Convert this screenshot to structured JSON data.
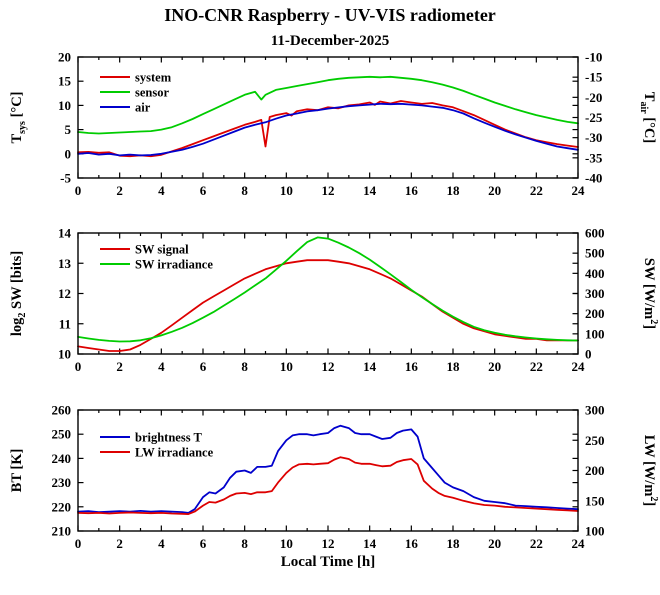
{
  "title": "INO-CNR Raspberry - UV-VIS radiometer",
  "date": "11-December-2025",
  "colors": {
    "red": "#dd0000",
    "green": "#00cc00",
    "blue": "#0000cc",
    "axis": "#000000"
  },
  "x_axis": {
    "min": 0,
    "max": 24,
    "tick_labels": [
      0,
      2,
      4,
      6,
      8,
      10,
      12,
      14,
      16,
      18,
      20,
      22,
      24
    ],
    "label": "Local Time [h]"
  },
  "chart_data": [
    {
      "type": "line",
      "name": "temperature",
      "left_axis": {
        "label": [
          {
            "t": "T"
          },
          {
            "t": "sys",
            "sub": true
          },
          {
            "t": " [°C]"
          }
        ],
        "min": -5,
        "max": 20,
        "ticks": [
          -5,
          0,
          5,
          10,
          15,
          20
        ]
      },
      "right_axis": {
        "label": [
          {
            "t": "T"
          },
          {
            "t": "air",
            "sub": true
          },
          {
            "t": " [°C]"
          }
        ],
        "min": -40,
        "max": -10,
        "ticks": [
          -40,
          -35,
          -30,
          -25,
          -20,
          -15,
          -10
        ]
      },
      "legend": [
        {
          "label": "system",
          "color": "red"
        },
        {
          "label": "sensor",
          "color": "green"
        },
        {
          "label": "air",
          "color": "blue"
        }
      ],
      "series": [
        {
          "name": "system",
          "color": "red",
          "axis": "left",
          "x": [
            0,
            0.5,
            1,
            1.5,
            2,
            2.5,
            3,
            3.5,
            4,
            4.5,
            5,
            5.5,
            6,
            6.5,
            7,
            7.5,
            8,
            8.5,
            8.8,
            9,
            9.2,
            9.5,
            10,
            10.25,
            10.5,
            11,
            11.5,
            12,
            12.5,
            13,
            13.5,
            14,
            14.25,
            14.5,
            15,
            15.5,
            16,
            16.5,
            17,
            17.5,
            18,
            18.5,
            19,
            19.5,
            20,
            20.5,
            21,
            21.5,
            22,
            22.5,
            23,
            23.5,
            24
          ],
          "y": [
            0.3,
            0.4,
            0.2,
            0.3,
            -0.4,
            -0.5,
            -0.3,
            -0.5,
            -0.2,
            0.5,
            1.2,
            2.0,
            2.8,
            3.6,
            4.4,
            5.2,
            6.0,
            6.6,
            7.0,
            1.5,
            7.6,
            8.0,
            8.4,
            7.9,
            8.8,
            9.2,
            9.0,
            9.6,
            9.4,
            10.0,
            10.2,
            10.6,
            10.1,
            10.8,
            10.4,
            10.9,
            10.6,
            10.3,
            10.5,
            10.0,
            9.6,
            8.8,
            8.0,
            7.0,
            6.0,
            5.0,
            4.2,
            3.4,
            2.8,
            2.4,
            2.0,
            1.7,
            1.4
          ]
        },
        {
          "name": "sensor",
          "color": "green",
          "axis": "left",
          "x": [
            0,
            0.5,
            1,
            1.5,
            2,
            2.5,
            3,
            3.5,
            4,
            4.5,
            5,
            5.5,
            6,
            6.5,
            7,
            7.5,
            8,
            8.5,
            8.8,
            9,
            9.5,
            10,
            10.5,
            11,
            11.5,
            12,
            12.5,
            13,
            13.5,
            14,
            14.5,
            15,
            15.5,
            16,
            16.5,
            17,
            17.5,
            18,
            18.5,
            19,
            19.5,
            20,
            20.5,
            21,
            21.5,
            22,
            22.5,
            23,
            23.5,
            24
          ],
          "y": [
            4.5,
            4.3,
            4.2,
            4.3,
            4.4,
            4.5,
            4.6,
            4.7,
            5.0,
            5.5,
            6.3,
            7.2,
            8.2,
            9.2,
            10.2,
            11.2,
            12.2,
            12.8,
            11.2,
            12.2,
            13.2,
            13.6,
            14.0,
            14.4,
            14.8,
            15.2,
            15.5,
            15.7,
            15.8,
            15.9,
            15.8,
            15.9,
            15.7,
            15.5,
            15.2,
            14.8,
            14.3,
            13.7,
            13.0,
            12.2,
            11.4,
            10.6,
            9.9,
            9.2,
            8.6,
            8.0,
            7.5,
            7.0,
            6.6,
            6.3
          ]
        },
        {
          "name": "air",
          "color": "blue",
          "axis": "right",
          "x": [
            0,
            0.5,
            1,
            1.5,
            2,
            2.5,
            3,
            3.5,
            4,
            4.5,
            5,
            5.5,
            6,
            6.5,
            7,
            7.5,
            8,
            8.5,
            9,
            9.5,
            10,
            10.5,
            11,
            11.5,
            12,
            12.5,
            13,
            13.5,
            14,
            14.5,
            15,
            15.5,
            16,
            16.5,
            17,
            17.5,
            18,
            18.5,
            19,
            19.5,
            20,
            20.5,
            21,
            21.5,
            22,
            22.5,
            23,
            23.5,
            24
          ],
          "y": [
            -34,
            -33.8,
            -34.2,
            -34,
            -34.4,
            -34.2,
            -34.4,
            -34.3,
            -34,
            -33.5,
            -33,
            -32.3,
            -31.5,
            -30.5,
            -29.5,
            -28.5,
            -27.5,
            -26.8,
            -26.2,
            -25.3,
            -24.5,
            -24,
            -23.5,
            -23.2,
            -22.8,
            -22.5,
            -22.2,
            -22,
            -21.8,
            -21.6,
            -21.7,
            -21.6,
            -21.8,
            -22,
            -22.3,
            -22.6,
            -23.2,
            -24,
            -25.2,
            -26.3,
            -27.3,
            -28.3,
            -29.2,
            -30,
            -30.8,
            -31.5,
            -32.2,
            -32.6,
            -33
          ]
        }
      ]
    },
    {
      "type": "line",
      "name": "shortwave",
      "left_axis": {
        "label": [
          {
            "t": "log"
          },
          {
            "t": "2",
            "sub": true
          },
          {
            "t": " SW [bits]"
          }
        ],
        "min": 10,
        "max": 14,
        "ticks": [
          10,
          11,
          12,
          13,
          14
        ]
      },
      "right_axis": {
        "label": [
          {
            "t": "SW [W/m"
          },
          {
            "t": "2",
            "sup": true
          },
          {
            "t": "]"
          }
        ],
        "min": 0,
        "max": 600,
        "ticks": [
          0,
          100,
          200,
          300,
          400,
          500,
          600
        ]
      },
      "legend": [
        {
          "label": "SW signal",
          "color": "red"
        },
        {
          "label": "SW irradiance",
          "color": "green"
        }
      ],
      "series": [
        {
          "name": "sw-signal",
          "color": "red",
          "axis": "left",
          "x": [
            0,
            0.5,
            1,
            1.5,
            2,
            2.5,
            3,
            3.5,
            4,
            4.5,
            5,
            5.5,
            6,
            6.5,
            7,
            7.5,
            8,
            8.5,
            9,
            9.5,
            10,
            10.5,
            11,
            11.5,
            12,
            12.5,
            13,
            13.5,
            14,
            14.5,
            15,
            15.5,
            16,
            16.5,
            17,
            17.5,
            18,
            18.5,
            19,
            19.5,
            20,
            20.5,
            21,
            21.5,
            22,
            22.5,
            23,
            23.5,
            24
          ],
          "y": [
            10.25,
            10.2,
            10.15,
            10.1,
            10.1,
            10.15,
            10.3,
            10.5,
            10.7,
            10.95,
            11.2,
            11.45,
            11.7,
            11.9,
            12.1,
            12.3,
            12.5,
            12.65,
            12.8,
            12.9,
            13.0,
            13.05,
            13.1,
            13.1,
            13.1,
            13.05,
            13.0,
            12.9,
            12.8,
            12.65,
            12.5,
            12.3,
            12.1,
            11.9,
            11.65,
            11.4,
            11.2,
            11.0,
            10.85,
            10.75,
            10.65,
            10.6,
            10.55,
            10.5,
            10.5,
            10.45,
            10.45,
            10.45,
            10.45
          ]
        },
        {
          "name": "sw-irradiance",
          "color": "green",
          "axis": "right",
          "x": [
            0,
            0.5,
            1,
            1.5,
            2,
            2.5,
            3,
            3.5,
            4,
            4.5,
            5,
            5.5,
            6,
            6.5,
            7,
            7.5,
            8,
            8.5,
            9,
            9.5,
            10,
            10.5,
            11,
            11.5,
            12,
            12.5,
            13,
            13.5,
            14,
            14.5,
            15,
            15.5,
            16,
            16.5,
            17,
            17.5,
            18,
            18.5,
            19,
            19.5,
            20,
            20.5,
            21,
            21.5,
            22,
            22.5,
            23,
            23.5,
            24
          ],
          "y": [
            85,
            77,
            70,
            65,
            62,
            63,
            68,
            78,
            92,
            110,
            130,
            153,
            180,
            208,
            240,
            272,
            305,
            340,
            375,
            418,
            462,
            510,
            555,
            578,
            572,
            552,
            528,
            500,
            468,
            432,
            395,
            357,
            318,
            282,
            248,
            215,
            185,
            158,
            135,
            118,
            105,
            95,
            88,
            82,
            77,
            73,
            70,
            68,
            67
          ]
        }
      ]
    },
    {
      "type": "line",
      "name": "longwave",
      "left_axis": {
        "label": [
          {
            "t": "BT [K]"
          }
        ],
        "min": 210,
        "max": 260,
        "ticks": [
          210,
          220,
          230,
          240,
          250,
          260
        ]
      },
      "right_axis": {
        "label": [
          {
            "t": "LW [W/m"
          },
          {
            "t": "2",
            "sup": true
          },
          {
            "t": "]"
          }
        ],
        "min": 100,
        "max": 300,
        "ticks": [
          100,
          150,
          200,
          250,
          300
        ]
      },
      "legend": [
        {
          "label": "brightness T",
          "color": "blue"
        },
        {
          "label": "LW irradiance",
          "color": "red"
        }
      ],
      "series": [
        {
          "name": "brightness-t",
          "color": "blue",
          "axis": "left",
          "x": [
            0,
            0.5,
            1,
            1.5,
            2,
            2.5,
            3,
            3.5,
            4,
            4.5,
            5,
            5.3,
            5.6,
            6,
            6.3,
            6.6,
            7,
            7.3,
            7.6,
            8,
            8.3,
            8.6,
            9,
            9.3,
            9.6,
            10,
            10.3,
            10.6,
            11,
            11.3,
            11.6,
            12,
            12.3,
            12.6,
            13,
            13.3,
            13.6,
            14,
            14.3,
            14.6,
            15,
            15.3,
            15.6,
            16,
            16.3,
            16.6,
            17,
            17.3,
            17.6,
            18,
            18.5,
            19,
            19.5,
            20,
            20.5,
            21,
            21.5,
            22,
            22.5,
            23,
            23.5,
            24
          ],
          "y": [
            218,
            218.2,
            217.8,
            218,
            218.2,
            218,
            218.3,
            218,
            218.2,
            218,
            217.8,
            217.5,
            219,
            224,
            226,
            225.5,
            228,
            232,
            234.5,
            235,
            234,
            236.5,
            236.5,
            237,
            243,
            247.5,
            249.5,
            250,
            250,
            249.5,
            250,
            250.5,
            252.5,
            253.5,
            252.5,
            250.5,
            250,
            250,
            249,
            248,
            248.5,
            250.5,
            251.5,
            252,
            249,
            240,
            236,
            233,
            230,
            228,
            226.5,
            224,
            222.5,
            222,
            221.5,
            220.5,
            220.3,
            220,
            219.8,
            219.5,
            219.2,
            219
          ]
        },
        {
          "name": "lw-irradiance",
          "color": "red",
          "axis": "right",
          "x": [
            0,
            0.5,
            1,
            1.5,
            2,
            2.5,
            3,
            3.5,
            4,
            4.5,
            5,
            5.3,
            5.6,
            6,
            6.3,
            6.6,
            7,
            7.3,
            7.6,
            8,
            8.3,
            8.6,
            9,
            9.3,
            9.6,
            10,
            10.3,
            10.6,
            11,
            11.3,
            11.6,
            12,
            12.3,
            12.6,
            13,
            13.3,
            13.6,
            14,
            14.3,
            14.6,
            15,
            15.3,
            15.6,
            16,
            16.3,
            16.6,
            17,
            17.3,
            17.6,
            18,
            18.5,
            19,
            19.5,
            20,
            20.5,
            21,
            21.5,
            22,
            22.5,
            23,
            23.5,
            24
          ],
          "y": [
            130,
            129.5,
            130,
            129,
            130,
            130.5,
            130,
            129.5,
            130,
            129,
            128.5,
            128,
            132,
            142,
            148,
            147,
            152,
            158,
            162,
            163,
            161,
            164,
            164,
            166,
            180,
            196,
            205,
            210,
            211,
            210,
            211,
            212,
            218,
            222,
            219,
            213,
            211,
            211,
            209,
            207,
            208,
            214,
            217,
            219,
            210,
            183,
            170,
            163,
            158,
            155,
            150,
            146,
            143,
            142,
            140,
            139,
            138,
            137,
            136,
            135,
            134,
            133
          ]
        }
      ]
    }
  ]
}
